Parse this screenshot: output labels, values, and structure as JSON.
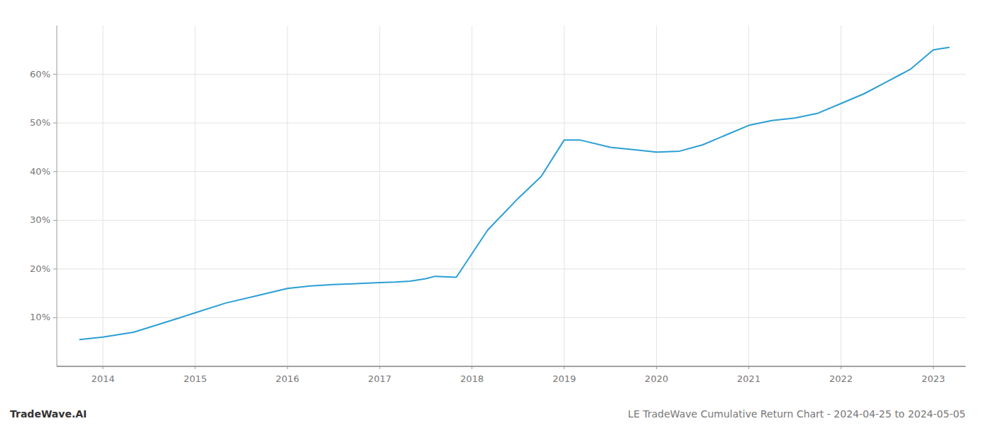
{
  "chart_data": {
    "type": "line",
    "title": "LE TradeWave Cumulative Return Chart - 2024-04-25 to 2024-05-05",
    "annotations": [
      "TradeWave.AI"
    ],
    "x": [
      2013.75,
      2014.0,
      2014.33,
      2014.67,
      2015.0,
      2015.33,
      2015.67,
      2016.0,
      2016.25,
      2016.5,
      2016.75,
      2017.0,
      2017.17,
      2017.33,
      2017.5,
      2017.6,
      2017.83,
      2018.17,
      2018.5,
      2018.75,
      2019.0,
      2019.17,
      2019.5,
      2019.75,
      2020.0,
      2020.25,
      2020.5,
      2020.75,
      2021.0,
      2021.25,
      2021.5,
      2021.75,
      2022.0,
      2022.25,
      2022.5,
      2022.75,
      2023.0,
      2023.17
    ],
    "values": [
      5.5,
      6.0,
      7.0,
      9.0,
      11.0,
      13.0,
      14.5,
      16.0,
      16.5,
      16.8,
      17.0,
      17.2,
      17.3,
      17.5,
      18.0,
      18.5,
      18.3,
      28.0,
      34.5,
      39.0,
      46.5,
      46.5,
      45.0,
      44.5,
      44.0,
      44.2,
      45.5,
      47.5,
      49.5,
      50.5,
      51.0,
      52.0,
      54.0,
      56.0,
      58.5,
      61.0,
      65.0,
      65.5
    ],
    "color": "#2b9fd4",
    "xlim": [
      2013.5,
      2023.35
    ],
    "xticks": [
      2014,
      2015,
      2016,
      2017,
      2018,
      2019,
      2020,
      2021,
      2022,
      2023
    ],
    "ylim": [
      0,
      70
    ],
    "yticks": [
      {
        "value": 10,
        "label": "10%"
      },
      {
        "value": 20,
        "label": "20%"
      },
      {
        "value": 30,
        "label": "30%"
      },
      {
        "value": 40,
        "label": "40%"
      },
      {
        "value": 50,
        "label": "50%"
      },
      {
        "value": 60,
        "label": "60%"
      }
    ],
    "grid": true
  }
}
